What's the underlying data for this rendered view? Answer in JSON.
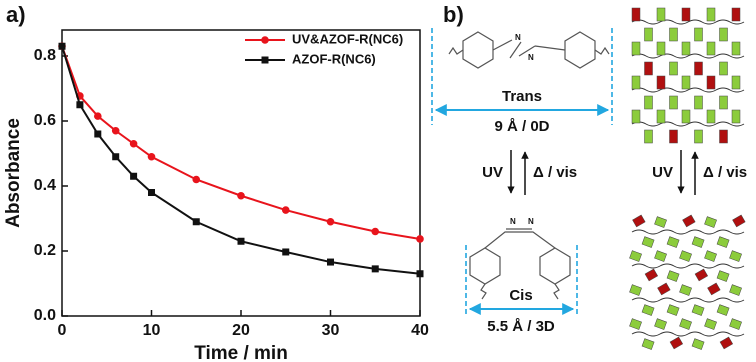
{
  "chart_data": {
    "type": "line",
    "panel_label": "a)",
    "x_label": "Time / min",
    "y_label": "Absorbance",
    "x": [
      0,
      2,
      4,
      6,
      8,
      10,
      15,
      20,
      25,
      30,
      35,
      40
    ],
    "series": [
      {
        "name": "UV&AZOF-R(NC6)",
        "color": "#e8141c",
        "marker": "circle",
        "values": [
          0.83,
          0.677,
          0.615,
          0.57,
          0.53,
          0.49,
          0.42,
          0.37,
          0.326,
          0.29,
          0.26,
          0.237
        ]
      },
      {
        "name": "AZOF-R(NC6)",
        "color": "#111111",
        "marker": "square",
        "values": [
          0.83,
          0.65,
          0.56,
          0.49,
          0.43,
          0.38,
          0.29,
          0.23,
          0.197,
          0.166,
          0.145,
          0.13
        ]
      }
    ],
    "xlim": [
      0,
      40
    ],
    "xticks": [
      0,
      10,
      20,
      30,
      40
    ],
    "ylim": [
      0,
      0.88
    ],
    "yticks": [
      {
        "value": 0,
        "label": "0.0"
      },
      0.2,
      0.4,
      0.6,
      0.8
    ],
    "legend": "top-right",
    "grid": false
  },
  "diagram": {
    "panel_label": "b)",
    "trans": {
      "label": "Trans",
      "size": "9 Å / 0D"
    },
    "cis": {
      "label": "Cis",
      "size": "5.5 Å / 3D"
    },
    "forward": "UV",
    "backward": "Δ / vis",
    "film_forward": "UV",
    "film_backward": "Δ / vis"
  }
}
